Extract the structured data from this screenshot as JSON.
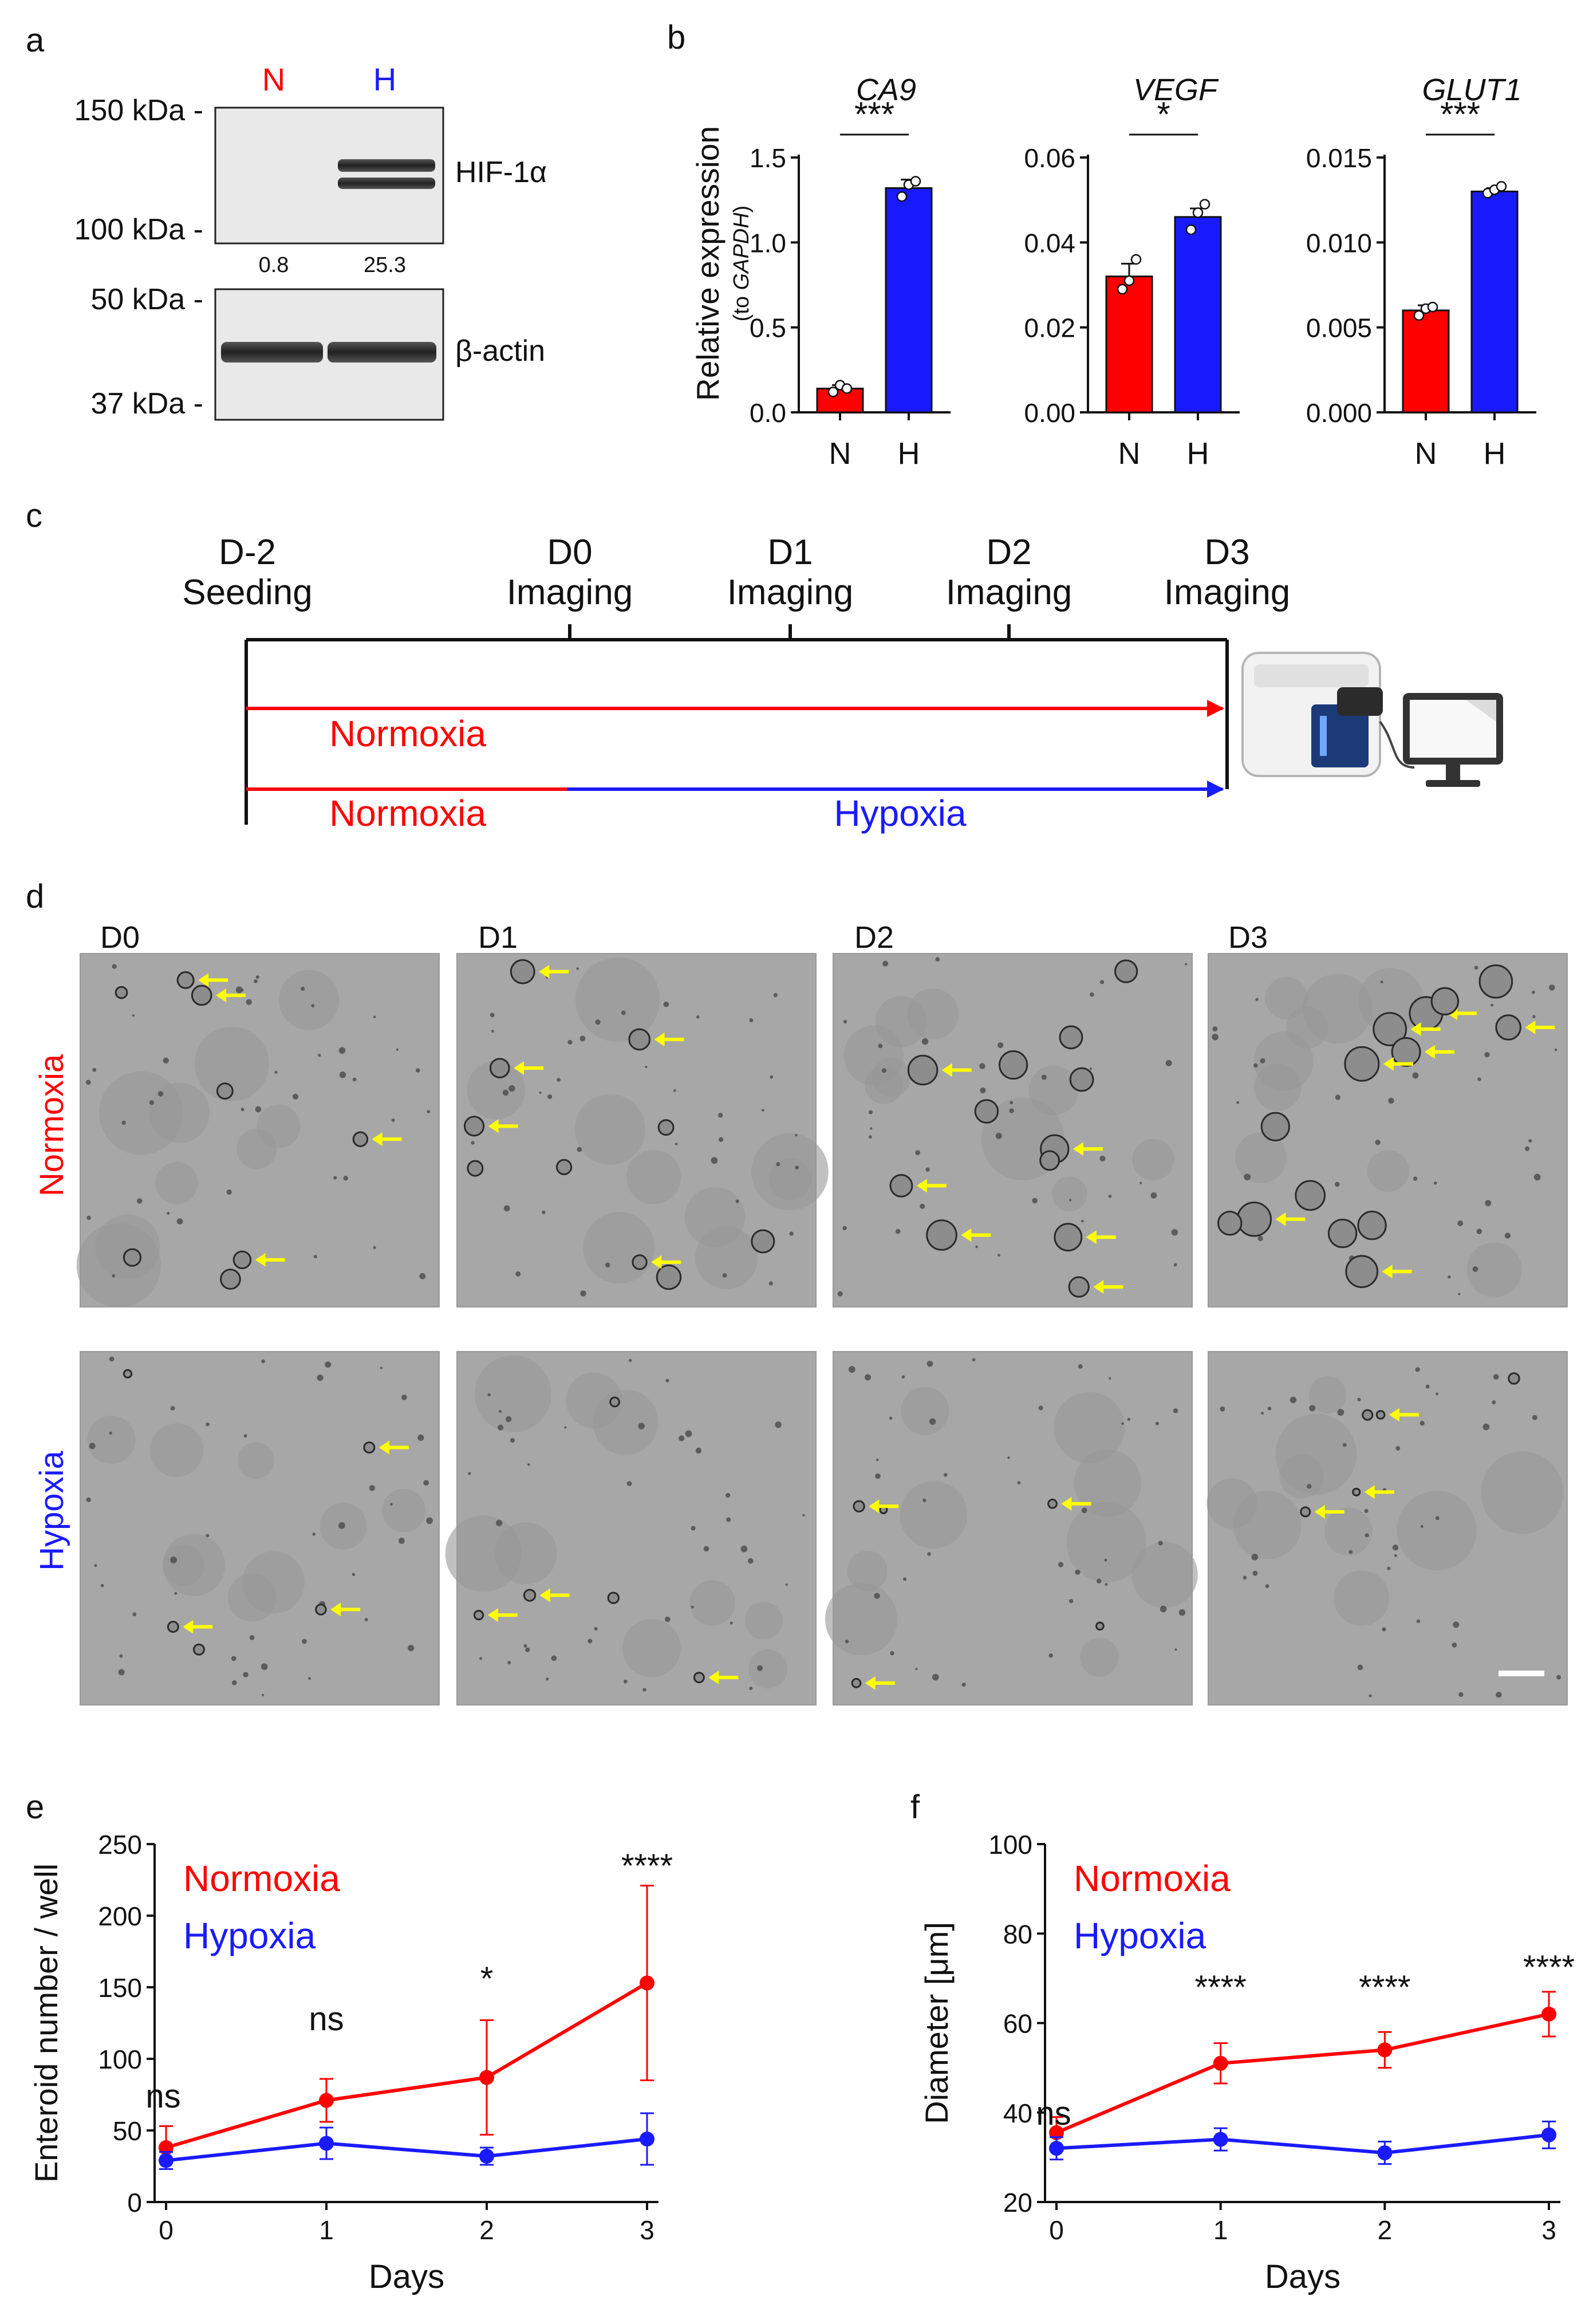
{
  "colors": {
    "normoxia": "#ff0000",
    "hypoxia": "#1a1aff",
    "arrow": "#ffff00"
  },
  "panel_a": {
    "letter": "a",
    "lane_labels": [
      "N",
      "H"
    ],
    "markers_top": [
      "150 kDa -",
      "100 kDa -"
    ],
    "markers_bottom": [
      "50 kDa -",
      "37 kDa -"
    ],
    "protein_top": "HIF-1α",
    "protein_bottom": "β-actin",
    "quant": [
      "0.8",
      "25.3"
    ]
  },
  "panel_b": {
    "letter": "b",
    "ylabel": "Relative expression",
    "ylabel_sub_prefix": "(to ",
    "ylabel_sub_gene": "GAPDH",
    "ylabel_sub_suffix": ")"
  },
  "panel_c": {
    "letter": "c",
    "timepoints": [
      {
        "day": "D-2",
        "event": "Seeding"
      },
      {
        "day": "D0",
        "event": "Imaging"
      },
      {
        "day": "D1",
        "event": "Imaging"
      },
      {
        "day": "D2",
        "event": "Imaging"
      },
      {
        "day": "D3",
        "event": "Imaging"
      }
    ],
    "normoxia_label": "Normoxia",
    "normoxia_label_2": "Normoxia",
    "hypoxia_label": "Hypoxia"
  },
  "panel_d": {
    "letter": "d",
    "days": [
      "D0",
      "D1",
      "D2",
      "D3"
    ],
    "row_labels": [
      "Normoxia",
      "Hypoxia"
    ]
  },
  "panel_e": {
    "letter": "e"
  },
  "panel_f": {
    "letter": "f"
  },
  "chart_data": [
    {
      "id": "b-ca9",
      "type": "bar",
      "title": "CA9",
      "categories": [
        "N",
        "H"
      ],
      "values": [
        0.14,
        1.32
      ],
      "errors": [
        0.02,
        0.05
      ],
      "points": [
        [
          0.12,
          0.16,
          0.14
        ],
        [
          1.27,
          1.34,
          1.36
        ]
      ],
      "ylim": [
        0,
        1.5
      ],
      "yticks": [
        "0.0",
        "0.5",
        "1.0",
        "1.5"
      ],
      "significance": "***"
    },
    {
      "id": "b-vegf",
      "type": "bar",
      "title": "VEGF",
      "categories": [
        "N",
        "H"
      ],
      "values": [
        0.032,
        0.046
      ],
      "errors": [
        0.003,
        0.002
      ],
      "points": [
        [
          0.029,
          0.031,
          0.036
        ],
        [
          0.043,
          0.047,
          0.049
        ]
      ],
      "ylim": [
        0,
        0.06
      ],
      "yticks": [
        "0.00",
        "0.02",
        "0.04",
        "0.06"
      ],
      "significance": "*"
    },
    {
      "id": "b-glut1",
      "type": "bar",
      "title": "GLUT1",
      "categories": [
        "N",
        "H"
      ],
      "values": [
        0.006,
        0.013
      ],
      "errors": [
        0.0003,
        0.0002
      ],
      "points": [
        [
          0.0057,
          0.0061,
          0.0062
        ],
        [
          0.0129,
          0.0131,
          0.0133
        ]
      ],
      "ylim": [
        0,
        0.015
      ],
      "yticks": [
        "0.000",
        "0.005",
        "0.010",
        "0.015"
      ],
      "significance": "***"
    },
    {
      "id": "e",
      "type": "line",
      "xlabel": "Days",
      "ylabel": "Enteroid number / well",
      "x": [
        0,
        1,
        2,
        3
      ],
      "xticks": [
        "0",
        "1",
        "2",
        "3"
      ],
      "ylim": [
        0,
        250
      ],
      "yticks": [
        "0",
        "50",
        "100",
        "150",
        "200",
        "250"
      ],
      "series": [
        {
          "name": "Normoxia",
          "values": [
            38,
            71,
            87,
            153
          ],
          "errors": [
            15,
            15,
            40,
            68
          ]
        },
        {
          "name": "Hypoxia",
          "values": [
            29,
            41,
            32,
            44
          ],
          "errors": [
            6,
            11,
            6,
            18
          ]
        }
      ],
      "annotations": [
        "ns",
        "ns",
        "*",
        "****"
      ]
    },
    {
      "id": "f",
      "type": "line",
      "xlabel": "Days",
      "ylabel": "Diameter [μm]",
      "x": [
        0,
        1,
        2,
        3
      ],
      "xticks": [
        "0",
        "1",
        "2",
        "3"
      ],
      "ylim": [
        20,
        100
      ],
      "yticks": [
        "20",
        "40",
        "60",
        "80",
        "100"
      ],
      "series": [
        {
          "name": "Normoxia",
          "values": [
            35.5,
            51,
            54,
            62
          ],
          "errors": [
            3.5,
            4.5,
            4,
            5
          ]
        },
        {
          "name": "Hypoxia",
          "values": [
            32,
            34,
            31,
            35
          ],
          "errors": [
            2.5,
            2.5,
            2.5,
            3
          ]
        }
      ],
      "annotations": [
        "ns",
        "****",
        "****",
        "****"
      ]
    }
  ]
}
